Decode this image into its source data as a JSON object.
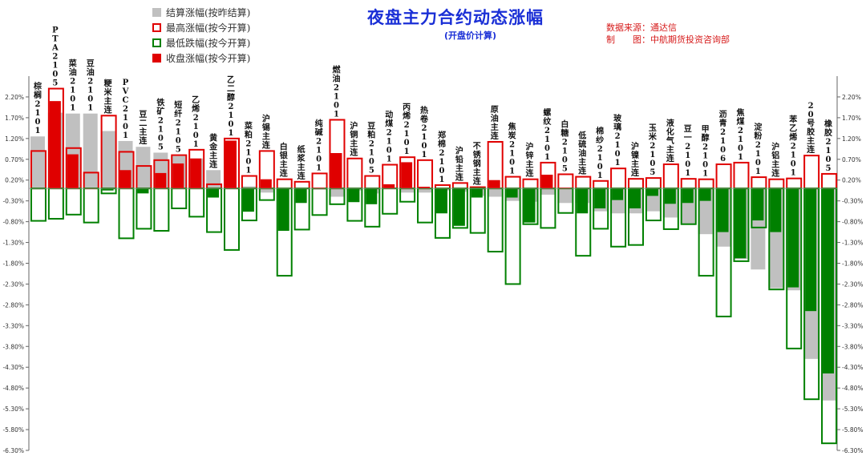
{
  "header": {
    "title": "夜盘主力合约动态涨幅",
    "subtitle": "(开盘价计算)",
    "source_line1": "数据来源：通达信",
    "source_line2": "制　　图：中航期货投资咨询部"
  },
  "legend": [
    {
      "label": "结算涨幅(按昨结算)",
      "color": "#c0c0c0",
      "style": "filled"
    },
    {
      "label": "最高涨幅(按今开算)",
      "color": "#e00000",
      "style": "outline"
    },
    {
      "label": "最低跌幅(按今开算)",
      "color": "#008000",
      "style": "outline"
    },
    {
      "label": "收盘涨幅(按今开算)",
      "color": "#e00000",
      "style": "filled"
    }
  ],
  "colors": {
    "settle": "#c0c0c0",
    "high": "#e00000",
    "low": "#008000",
    "close_up": "#e00000",
    "close_down": "#008000",
    "axis": "#666666"
  },
  "chart_data": {
    "type": "bar",
    "ylim": [
      -6.3,
      2.7
    ],
    "yticks": [
      "-6.30%",
      "-5.80%",
      "-5.30%",
      "-4.80%",
      "-4.30%",
      "-3.80%",
      "-3.30%",
      "-2.80%",
      "-2.30%",
      "-1.80%",
      "-1.30%",
      "-0.80%",
      "-0.30%",
      "0.20%",
      "0.70%",
      "1.20%",
      "1.70%",
      "2.20%"
    ],
    "ytick_values": [
      -6.3,
      -5.8,
      -5.3,
      -4.8,
      -4.3,
      -3.8,
      -3.3,
      -2.8,
      -2.3,
      -1.8,
      -1.3,
      -0.8,
      -0.3,
      0.2,
      0.7,
      1.2,
      1.7,
      2.2
    ],
    "categories": [
      "棕榈2101",
      "PTA2105",
      "菜油2101",
      "豆油2101",
      "粳米主连",
      "PVC2101",
      "豆二主连",
      "铁矿2105",
      "短纤2105",
      "乙烯2101",
      "黄金主连",
      "乙二醇2101",
      "菜粕2101",
      "沪锡主连",
      "白银主连",
      "纸浆主连",
      "纯碱2101",
      "燃油2101",
      "沪铜主连",
      "豆粕2105",
      "动煤2101",
      "丙烯2101",
      "热卷2101",
      "郑棉2101",
      "沪铅主连",
      "不锈钢主连",
      "原油主连",
      "焦炭2101",
      "沪锌主连",
      "螺纹2101",
      "白糖2105",
      "低硫油主连",
      "棉纱2101",
      "玻璃2101",
      "沪镍主连",
      "玉米2105",
      "液化气主连",
      "豆一2101",
      "甲醇2101",
      "沥青2106",
      "焦煤2101",
      "淀粉2101",
      "沪铝主连",
      "苯乙烯2101",
      "20号胶主连",
      "橡胶2105"
    ],
    "series": [
      {
        "name": "结算涨幅(按昨结算)",
        "values": [
          1.25,
          1.82,
          1.8,
          1.8,
          1.38,
          1.14,
          1.0,
          0.86,
          0.78,
          0.72,
          0.44,
          0.0,
          0.05,
          -0.1,
          -0.02,
          0.0,
          -0.03,
          -0.2,
          -0.05,
          -0.12,
          0.0,
          -0.1,
          -0.1,
          -0.05,
          -0.08,
          -0.18,
          -0.2,
          -0.3,
          -0.32,
          -0.15,
          -0.35,
          -0.35,
          -0.55,
          -0.6,
          -0.6,
          -0.55,
          -0.7,
          -0.85,
          -1.1,
          -1.4,
          -1.7,
          -1.95,
          -2.4,
          -2.45,
          -4.1,
          -5.1
        ]
      },
      {
        "name": "最高涨幅(按今开算)",
        "values": [
          0.9,
          2.4,
          0.97,
          0.38,
          1.75,
          0.88,
          0.54,
          0.68,
          0.8,
          0.93,
          0.1,
          1.2,
          0.3,
          0.9,
          0.22,
          0.16,
          0.36,
          1.65,
          0.72,
          0.3,
          0.57,
          0.75,
          0.68,
          0.08,
          0.13,
          0.03,
          1.12,
          0.28,
          0.22,
          0.62,
          0.34,
          0.28,
          0.18,
          0.48,
          0.23,
          0.25,
          0.58,
          0.23,
          0.22,
          0.58,
          0.62,
          0.27,
          0.22,
          0.24,
          0.79,
          0.35
        ]
      },
      {
        "name": "最低跌幅(按今开算)",
        "values": [
          -0.78,
          -0.73,
          -0.63,
          -0.82,
          -0.12,
          -1.2,
          -0.97,
          -1.02,
          -0.48,
          -0.68,
          -1.05,
          -1.48,
          -0.77,
          -0.28,
          -2.1,
          -0.99,
          -0.64,
          -0.38,
          -0.78,
          -0.92,
          -0.61,
          -0.32,
          -0.82,
          -1.19,
          -0.95,
          -1.07,
          -1.52,
          -2.3,
          -0.86,
          -0.95,
          -0.59,
          -1.62,
          -0.97,
          -1.4,
          -1.36,
          -0.77,
          -0.98,
          -0.86,
          -2.1,
          -3.08,
          -1.75,
          -0.94,
          -2.43,
          -3.85,
          -5.07,
          -6.13
        ]
      },
      {
        "name": "收盘涨幅(按今开算)",
        "values": [
          -0.02,
          2.1,
          0.82,
          0.0,
          -0.05,
          0.44,
          -0.12,
          0.37,
          0.6,
          0.72,
          -0.22,
          1.15,
          -0.56,
          0.22,
          -1.02,
          -0.35,
          0.02,
          0.85,
          -0.33,
          -0.38,
          0.1,
          0.63,
          0.04,
          -0.6,
          -0.9,
          -0.22,
          0.2,
          -0.22,
          -0.82,
          0.33,
          0.02,
          -0.6,
          -0.48,
          -0.28,
          -0.48,
          -0.18,
          -0.37,
          -0.35,
          -0.3,
          -1.05,
          -1.68,
          -0.77,
          -1.05,
          -2.38,
          -2.95,
          -4.45
        ]
      }
    ]
  }
}
